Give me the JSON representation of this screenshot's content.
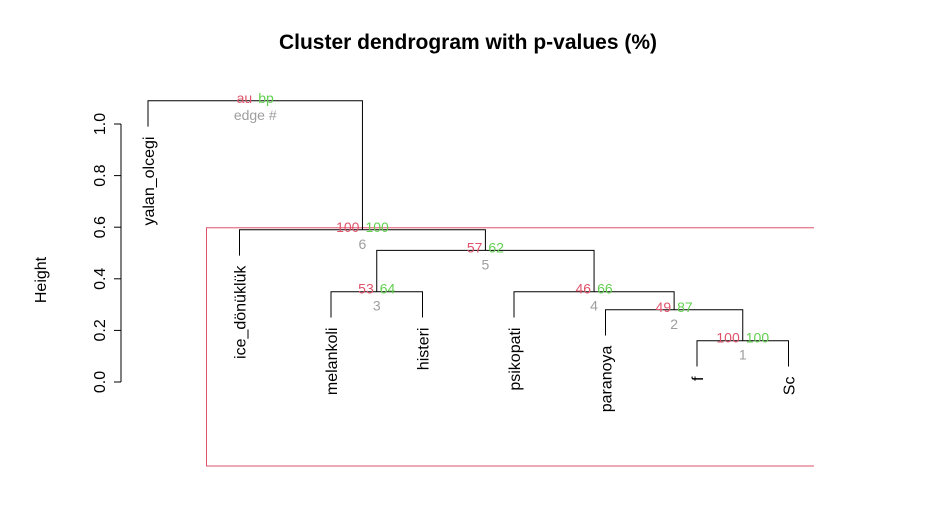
{
  "chart_data": {
    "type": "dendrogram",
    "title": "Cluster dendrogram with p-values (%)",
    "ylabel": "Height",
    "ylim": [
      0,
      1.1
    ],
    "yticks": [
      "0.0",
      "0.2",
      "0.4",
      "0.6",
      "0.8",
      "1.0"
    ],
    "yticks_values": [
      0,
      0.2,
      0.4,
      0.6,
      0.8,
      1.0
    ],
    "leaves": [
      "yalan_olcegi",
      "ice_dönüklük",
      "melankoli",
      "histeri",
      "psikopati",
      "paranoya",
      "f",
      "Sc"
    ],
    "merges": [
      {
        "edge": "1",
        "au": "100",
        "bp": "100",
        "left": "leaf:f",
        "right": "leaf:Sc",
        "height": 0.16
      },
      {
        "edge": "2",
        "au": "49",
        "bp": "87",
        "left": "leaf:paranoya",
        "right": "edge:1",
        "height": 0.28
      },
      {
        "edge": "3",
        "au": "53",
        "bp": "64",
        "left": "leaf:melankoli",
        "right": "leaf:histeri",
        "height": 0.35
      },
      {
        "edge": "4",
        "au": "46",
        "bp": "66",
        "left": "leaf:psikopati",
        "right": "edge:2",
        "height": 0.35
      },
      {
        "edge": "5",
        "au": "57",
        "bp": "62",
        "left": "edge:3",
        "right": "edge:4",
        "height": 0.51
      },
      {
        "edge": "6",
        "au": "100",
        "bp": "100",
        "left": "leaf:ice_dönüklük",
        "right": "edge:5",
        "height": 0.59
      },
      {
        "edge": "",
        "au": "",
        "bp": "",
        "left": "leaf:yalan_olcegi",
        "right": "edge:6",
        "height": 1.09
      }
    ],
    "legend": {
      "au": "au",
      "bp": "bp",
      "edge": "edge #"
    },
    "highlight_cluster": {
      "members": [
        "ice_dönüklük",
        "melankoli",
        "histeri",
        "psikopati",
        "paranoya",
        "f",
        "Sc"
      ],
      "color": "#DF536B"
    },
    "colors": {
      "au": "#DF536B",
      "bp": "#61D04F",
      "edge": "#9E9E9E",
      "line": "#000000"
    }
  }
}
